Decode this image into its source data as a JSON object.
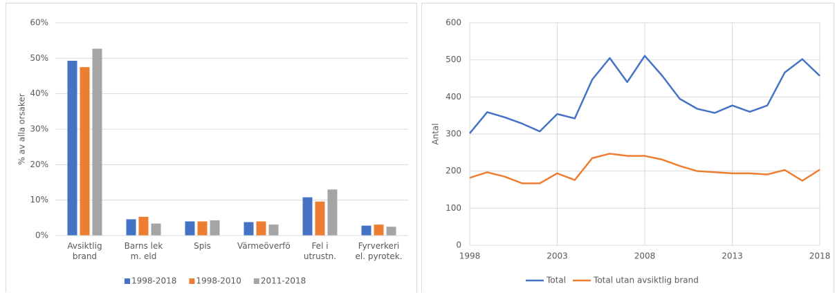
{
  "chart_data": [
    {
      "type": "bar",
      "y_label": "% av alla orsaker",
      "categories": [
        "Avsiktlig brand",
        "Barns lek m. eld",
        "Spis",
        "Värmeöverfö.",
        "Fel i utrustn.",
        "Fyrverkeri el. pyrotek."
      ],
      "series": [
        {
          "name": "1998-2018",
          "color": "#4472c4",
          "values": [
            49.3,
            4.6,
            4.0,
            3.8,
            10.8,
            2.8
          ]
        },
        {
          "name": "1998-2010",
          "color": "#ed7d31",
          "values": [
            47.5,
            5.3,
            4.0,
            4.0,
            9.6,
            3.1
          ]
        },
        {
          "name": "2011-2018",
          "color": "#a5a5a5",
          "values": [
            52.7,
            3.4,
            4.3,
            3.1,
            13.0,
            2.5
          ]
        }
      ],
      "ylim": [
        0,
        60
      ],
      "yticks": [
        {
          "value": 0,
          "label": "0%"
        },
        {
          "value": 10,
          "label": "10%"
        },
        {
          "value": 20,
          "label": "20%"
        },
        {
          "value": 30,
          "label": "30%"
        },
        {
          "value": 40,
          "label": "40%"
        },
        {
          "value": 50,
          "label": "50%"
        },
        {
          "value": 60,
          "label": "60%"
        }
      ],
      "grid": true,
      "legend": "bottom"
    },
    {
      "type": "line",
      "y_label": "Antal",
      "x": [
        1998,
        1999,
        2000,
        2001,
        2002,
        2003,
        2004,
        2005,
        2006,
        2007,
        2008,
        2009,
        2010,
        2011,
        2012,
        2013,
        2014,
        2015,
        2016,
        2017,
        2018
      ],
      "series": [
        {
          "name": "Total",
          "color": "#4472c4",
          "values": [
            302,
            359,
            345,
            328,
            307,
            354,
            342,
            447,
            505,
            440,
            511,
            457,
            395,
            368,
            357,
            377,
            360,
            377,
            466,
            502,
            457
          ]
        },
        {
          "name": "Total utan avsiktlig brand",
          "color": "#ed7d31",
          "values": [
            182,
            197,
            185,
            167,
            167,
            194,
            176,
            235,
            247,
            241,
            241,
            231,
            214,
            200,
            197,
            194,
            194,
            191,
            203,
            174,
            204
          ]
        }
      ],
      "xlim": [
        1998,
        2018
      ],
      "xticks": [
        1998,
        2003,
        2008,
        2013,
        2018
      ],
      "ylim": [
        0,
        600
      ],
      "yticks": [
        0,
        100,
        200,
        300,
        400,
        500,
        600
      ],
      "grid": true,
      "legend": "bottom"
    }
  ]
}
